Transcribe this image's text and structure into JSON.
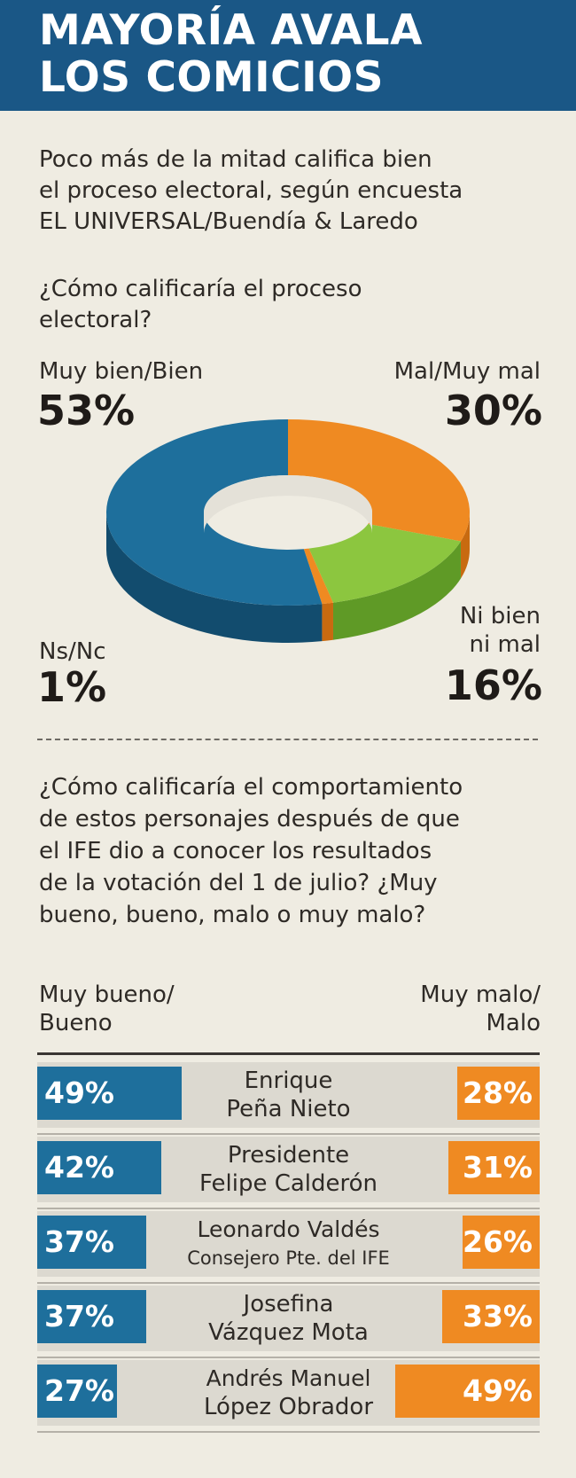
{
  "header": {
    "title_line1": "MAYORÍA AVALA",
    "title_line2": "LOS COMICIOS"
  },
  "intro": {
    "line1": "Poco más de la mitad califica bien",
    "line2": "el proceso electoral, según encuesta",
    "line3": "EL UNIVERSAL/Buendía & Laredo"
  },
  "question1": {
    "line1": "¿Cómo calificaría el proceso",
    "line2": "electoral?"
  },
  "question2": {
    "line1": "¿Cómo calificaría el comportamiento",
    "line2": "de estos personajes después de que",
    "line3": "el IFE dio a conocer los resultados",
    "line4": "de la votación del 1 de julio? ¿Muy",
    "line5": "bueno, bueno, malo o muy malo?"
  },
  "col_headers": {
    "left_line1": "Muy bueno/",
    "left_line2": "Bueno",
    "right_line1": "Muy malo/",
    "right_line2": "Malo"
  },
  "colors": {
    "header_bg": "#1a5786",
    "blue": "#1e6f9c",
    "orange": "#ef8a22",
    "green": "#8cc63f",
    "background": "#efece2"
  },
  "chart_data": [
    {
      "type": "pie",
      "variant": "donut-3d",
      "slices": [
        {
          "label": "Mal/Muy mal",
          "label_line1": "Mal/Muy mal",
          "value": 30,
          "display": "30%",
          "color": "#ef8a22",
          "side": "#c86a10"
        },
        {
          "label": "Ni bien ni mal",
          "label_line1": "Ni bien",
          "label_line2": "ni mal",
          "value": 16,
          "display": "16%",
          "color": "#8cc63f",
          "side": "#5f9a26"
        },
        {
          "label": "Ns/Nc",
          "label_line1": "Ns/Nc",
          "value": 1,
          "display": "1%",
          "color": "#ef8a22",
          "side": "#c86a10"
        },
        {
          "label": "Muy bien/Bien",
          "label_line1": "Muy bien/Bien",
          "value": 53,
          "display": "53%",
          "color": "#1e6f9c",
          "side": "#124c6e"
        }
      ]
    },
    {
      "type": "bar",
      "orientation": "horizontal-diverging",
      "series": [
        {
          "name": "Muy bueno/Bueno",
          "color": "#1e6f9c"
        },
        {
          "name": "Muy malo/Malo",
          "color": "#ef8a22"
        }
      ],
      "rows": [
        {
          "name_line1": "Enrique",
          "name_line2": "Peña Nieto",
          "good": 49,
          "good_label": "49%",
          "bad": 28,
          "bad_label": "28%"
        },
        {
          "name_line1": "Presidente",
          "name_line2": "Felipe Calderón",
          "good": 42,
          "good_label": "42%",
          "bad": 31,
          "bad_label": "31%"
        },
        {
          "name_line1": "Leonardo Valdés",
          "name_line2": "Consejero Pte. del IFE",
          "good": 37,
          "good_label": "37%",
          "bad": 26,
          "bad_label": "26%"
        },
        {
          "name_line1": "Josefina",
          "name_line2": "Vázquez Mota",
          "good": 37,
          "good_label": "37%",
          "bad": 33,
          "bad_label": "33%"
        },
        {
          "name_line1": "Andrés Manuel",
          "name_line2": "López Obrador",
          "good": 27,
          "good_label": "27%",
          "bad": 49,
          "bad_label": "49%"
        }
      ]
    }
  ]
}
